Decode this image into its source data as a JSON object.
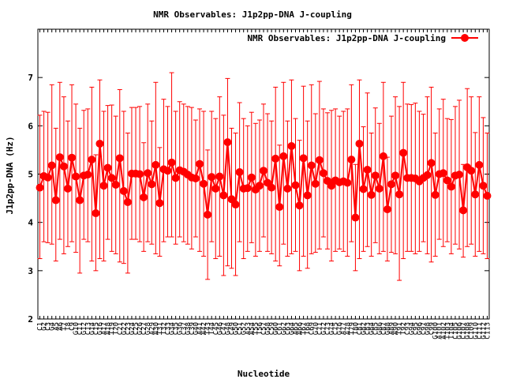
{
  "chart_data": {
    "type": "line",
    "title": "NMR Observables: J1p2pp-DNA J-coupling",
    "xlabel": "Nucleotide",
    "ylabel": "J1p2pp-DNA (Hz)",
    "ylim": [
      2,
      8
    ],
    "yticks": [
      2,
      3,
      4,
      5,
      6,
      7
    ],
    "legend_position": "top-right",
    "color": "#ff0000",
    "series": [
      {
        "name": "NMR Observables: J1p2pp-DNA J-coupling",
        "values": [
          4.72,
          4.96,
          4.93,
          5.18,
          4.46,
          5.35,
          5.16,
          4.7,
          5.34,
          4.95,
          4.46,
          4.97,
          4.99,
          5.3,
          4.19,
          5.63,
          4.76,
          5.13,
          4.92,
          4.78,
          5.33,
          4.65,
          4.42,
          5.01,
          5.01,
          5.0,
          4.52,
          5.02,
          4.79,
          5.19,
          4.4,
          5.1,
          5.07,
          5.24,
          4.92,
          5.08,
          5.05,
          4.99,
          4.93,
          4.91,
          5.21,
          4.8,
          4.16,
          4.94,
          4.7,
          4.95,
          4.56,
          5.66,
          4.48,
          4.37,
          5.04,
          4.7,
          4.71,
          4.93,
          4.68,
          4.76,
          5.07,
          4.82,
          4.72,
          5.32,
          4.32,
          5.37,
          4.7,
          5.58,
          4.77,
          4.35,
          5.33,
          4.56,
          5.18,
          4.8,
          5.29,
          5.02,
          4.86,
          4.76,
          4.87,
          4.83,
          4.85,
          4.82,
          5.3,
          4.1,
          5.63,
          4.69,
          5.09,
          4.57,
          4.97,
          4.7,
          5.37,
          4.27,
          4.79,
          4.97,
          4.58,
          5.44,
          4.92,
          4.92,
          4.91,
          4.85,
          4.92,
          4.98,
          5.23,
          4.57,
          5.0,
          5.02,
          4.87,
          4.74,
          4.97,
          4.99,
          4.25,
          5.14,
          5.07,
          4.58,
          5.19,
          4.76,
          4.55
        ],
        "err_low": [
          3.25,
          3.6,
          3.58,
          3.55,
          3.2,
          3.65,
          3.35,
          3.5,
          3.6,
          3.38,
          2.95,
          3.65,
          3.6,
          3.2,
          3.0,
          3.25,
          3.2,
          3.65,
          3.4,
          3.35,
          3.18,
          3.15,
          2.95,
          3.65,
          3.65,
          3.6,
          3.4,
          3.6,
          3.55,
          3.35,
          3.3,
          3.6,
          3.7,
          3.7,
          3.55,
          3.7,
          3.6,
          3.55,
          3.45,
          3.7,
          3.4,
          3.3,
          2.82,
          3.6,
          3.25,
          3.3,
          2.9,
          3.1,
          3.05,
          2.9,
          3.6,
          3.25,
          3.4,
          3.58,
          3.3,
          3.4,
          3.7,
          3.4,
          3.35,
          3.2,
          3.1,
          3.55,
          3.3,
          3.35,
          3.4,
          3.0,
          3.3,
          3.05,
          3.35,
          3.38,
          3.45,
          3.7,
          3.45,
          3.2,
          3.4,
          3.45,
          3.4,
          3.3,
          3.6,
          3.0,
          3.25,
          3.4,
          3.5,
          3.3,
          3.58,
          3.35,
          3.4,
          3.2,
          3.38,
          3.35,
          2.8,
          3.25,
          3.4,
          3.4,
          3.35,
          3.4,
          3.6,
          3.35,
          3.18,
          3.3,
          3.65,
          3.5,
          3.6,
          3.35,
          3.55,
          3.45,
          3.28,
          3.5,
          3.55,
          3.3,
          3.4,
          3.35,
          3.25
        ],
        "err_high": [
          6.22,
          6.3,
          6.28,
          6.85,
          5.95,
          6.9,
          6.6,
          6.1,
          6.85,
          6.45,
          5.95,
          6.32,
          6.35,
          6.8,
          5.4,
          6.95,
          6.3,
          6.42,
          6.43,
          6.2,
          6.75,
          6.3,
          5.85,
          6.38,
          6.38,
          6.4,
          5.65,
          6.45,
          6.1,
          6.9,
          5.55,
          6.55,
          6.4,
          7.1,
          6.3,
          6.5,
          6.45,
          6.4,
          6.38,
          6.12,
          6.35,
          6.3,
          5.5,
          6.3,
          6.15,
          6.6,
          6.22,
          6.98,
          5.95,
          5.85,
          6.48,
          6.15,
          6.0,
          6.28,
          6.05,
          6.12,
          6.45,
          6.25,
          6.1,
          6.8,
          5.6,
          6.9,
          6.1,
          6.95,
          6.15,
          5.7,
          6.82,
          6.1,
          6.85,
          6.25,
          6.92,
          6.35,
          6.27,
          6.32,
          6.35,
          6.2,
          6.3,
          6.35,
          6.85,
          5.2,
          6.95,
          5.98,
          6.68,
          5.85,
          6.37,
          6.05,
          6.9,
          5.35,
          6.2,
          6.6,
          6.4,
          6.9,
          6.45,
          6.44,
          6.47,
          6.3,
          6.24,
          6.6,
          6.8,
          5.85,
          6.35,
          6.55,
          6.15,
          6.13,
          6.4,
          6.53,
          5.2,
          6.77,
          6.6,
          5.86,
          6.6,
          6.17,
          5.85
        ]
      }
    ],
    "x_tick_labels": [
      "C1",
      "G2",
      "C3",
      "G4",
      "A5",
      "A6",
      "T7",
      "T8",
      "C9",
      "G10",
      "C11",
      "G12",
      "C13",
      "G14",
      "C15",
      "G16",
      "A17",
      "A18",
      "T19",
      "T20",
      "C21",
      "G22",
      "C23",
      "G24",
      "C25",
      "G26",
      "C27",
      "G28",
      "A29",
      "A30",
      "T31",
      "T32",
      "C33",
      "G34",
      "C35",
      "G36",
      "C37",
      "G38",
      "C39",
      "G40",
      "A41",
      "A42",
      "T43",
      "T44",
      "C45",
      "G46",
      "C47",
      "G48",
      "C49",
      "G50",
      "C51",
      "G52",
      "A53",
      "A54",
      "T55",
      "T56",
      "C57",
      "G58",
      "C59",
      "G60",
      "C61",
      "G62",
      "C63",
      "G64",
      "A65",
      "A66",
      "T67",
      "T68",
      "C69",
      "G70",
      "C71",
      "G72",
      "C73",
      "G74",
      "C75",
      "G76",
      "A77",
      "A78",
      "T79",
      "T80",
      "C81",
      "G82",
      "C83",
      "G84",
      "C85",
      "G86",
      "C87",
      "G88",
      "A89",
      "A90",
      "T91",
      "T92",
      "C93",
      "G94",
      "C95",
      "G96",
      "C97",
      "G98",
      "C99",
      "G100",
      "A101",
      "A102",
      "T103",
      "T104",
      "C105",
      "G106",
      "C107",
      "G108",
      "C109",
      "G110",
      "C111",
      "G112",
      "C113"
    ]
  }
}
